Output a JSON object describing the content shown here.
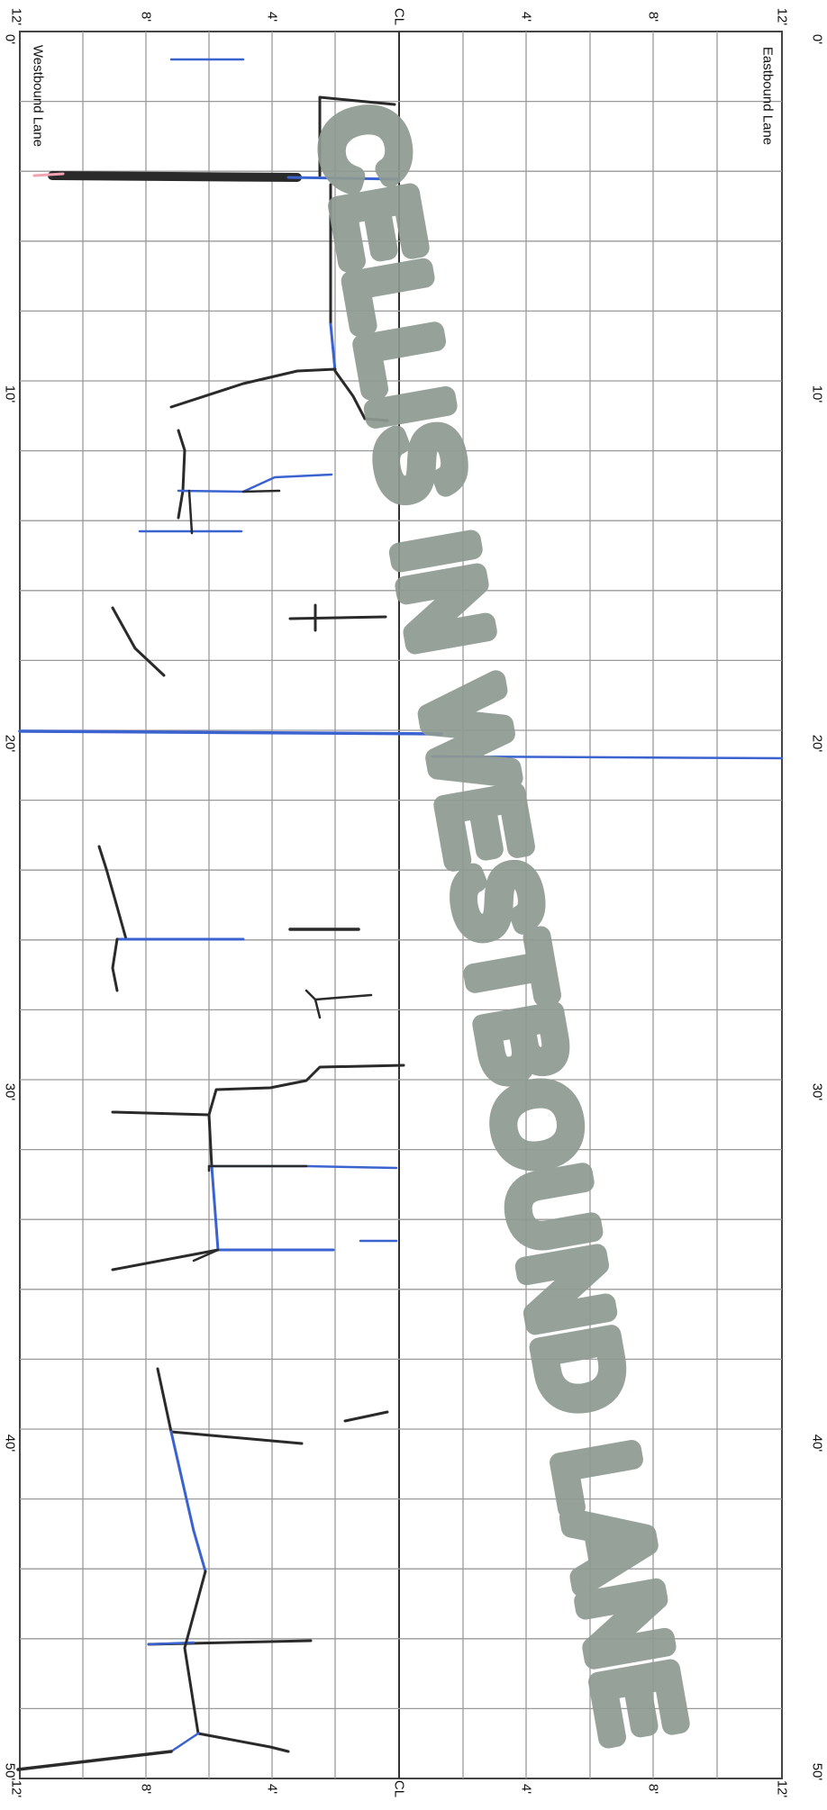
{
  "form": {
    "left_lane_label": "Westbound Lane",
    "right_lane_label": "Eastbound Lane",
    "left_station_labels": [
      "0'",
      "10'",
      "20'",
      "30'",
      "40'",
      "50'"
    ],
    "right_station_labels": [
      "0'",
      "10'",
      "20'",
      "30'",
      "40'",
      "50'"
    ],
    "top_offset_labels": [
      "12'",
      "8'",
      "4'",
      "CL",
      "4'",
      "8'",
      "12'"
    ],
    "bottom_offset_labels": [
      "12'",
      "8'",
      "4'",
      "CL",
      "4'",
      "8'",
      "12'"
    ]
  },
  "stamp": {
    "text": "CELLIS IN WESTBOUND LANE",
    "color": "#8e9a92"
  },
  "ink_colors": {
    "black": "#2a2a2a",
    "blue": "#3b63d0",
    "pink": "#f2a3b3"
  }
}
